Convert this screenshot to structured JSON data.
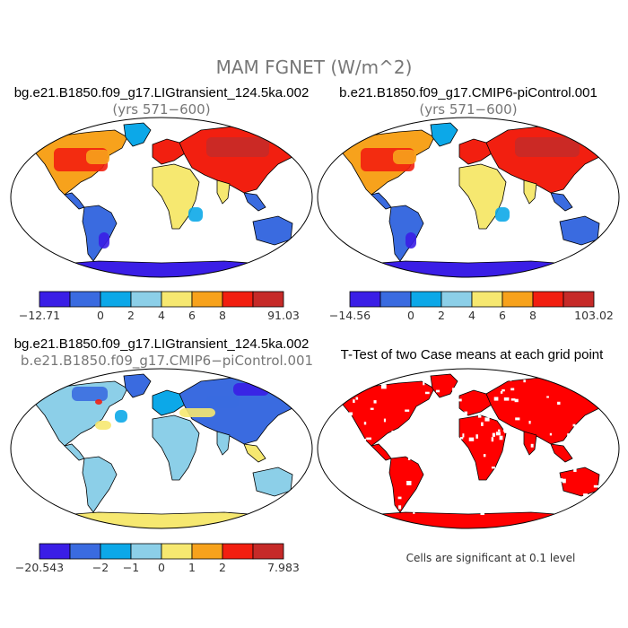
{
  "figure": {
    "main_title": "MAM FGNET (W/m^2)"
  },
  "chart_data": [
    {
      "type": "heatmap",
      "title": "bg.e21.B1850.f09_g17.LIGtransient_124.5ka.002",
      "subtitle": "(yrs 571−600)",
      "colorbar": {
        "colors": [
          "#3a1ee6",
          "#3a6be0",
          "#0ca8e8",
          "#8ccfe8",
          "#f6e870",
          "#f7a21c",
          "#f21f10",
          "#c62a28"
        ],
        "ticks": [
          "−12.71",
          "0",
          "2",
          "4",
          "6",
          "8",
          "91.03"
        ]
      }
    },
    {
      "type": "heatmap",
      "title": "b.e21.B1850.f09_g17.CMIP6-piControl.001",
      "subtitle": "(yrs 571−600)",
      "colorbar": {
        "colors": [
          "#3a1ee6",
          "#3a6be0",
          "#0ca8e8",
          "#8ccfe8",
          "#f6e870",
          "#f7a21c",
          "#f21f10",
          "#c62a28"
        ],
        "ticks": [
          "−14.56",
          "0",
          "2",
          "4",
          "6",
          "8",
          "103.02"
        ]
      }
    },
    {
      "type": "heatmap",
      "title": "bg.e21.B1850.f09_g17.LIGtransient_124.5ka.002",
      "subtitle": "b.e21.B1850.f09_g17.CMIP6−piControl.001",
      "colorbar": {
        "colors": [
          "#3a1ee6",
          "#3a6be0",
          "#0ca8e8",
          "#8ccfe8",
          "#f6e870",
          "#f7a21c",
          "#f21f10",
          "#c62a28"
        ],
        "ticks": [
          "−20.543",
          "−2",
          "−1",
          "0",
          "1",
          "2",
          "7.983"
        ]
      }
    },
    {
      "type": "heatmap",
      "title": "T-Test of two Case means at each grid point",
      "note": "Cells are significant at 0.1 level",
      "significant_color": "#ff0000"
    }
  ],
  "palette": {
    "ocean": "#ffffff",
    "border": "#000000",
    "main_title_color": "#777777"
  }
}
